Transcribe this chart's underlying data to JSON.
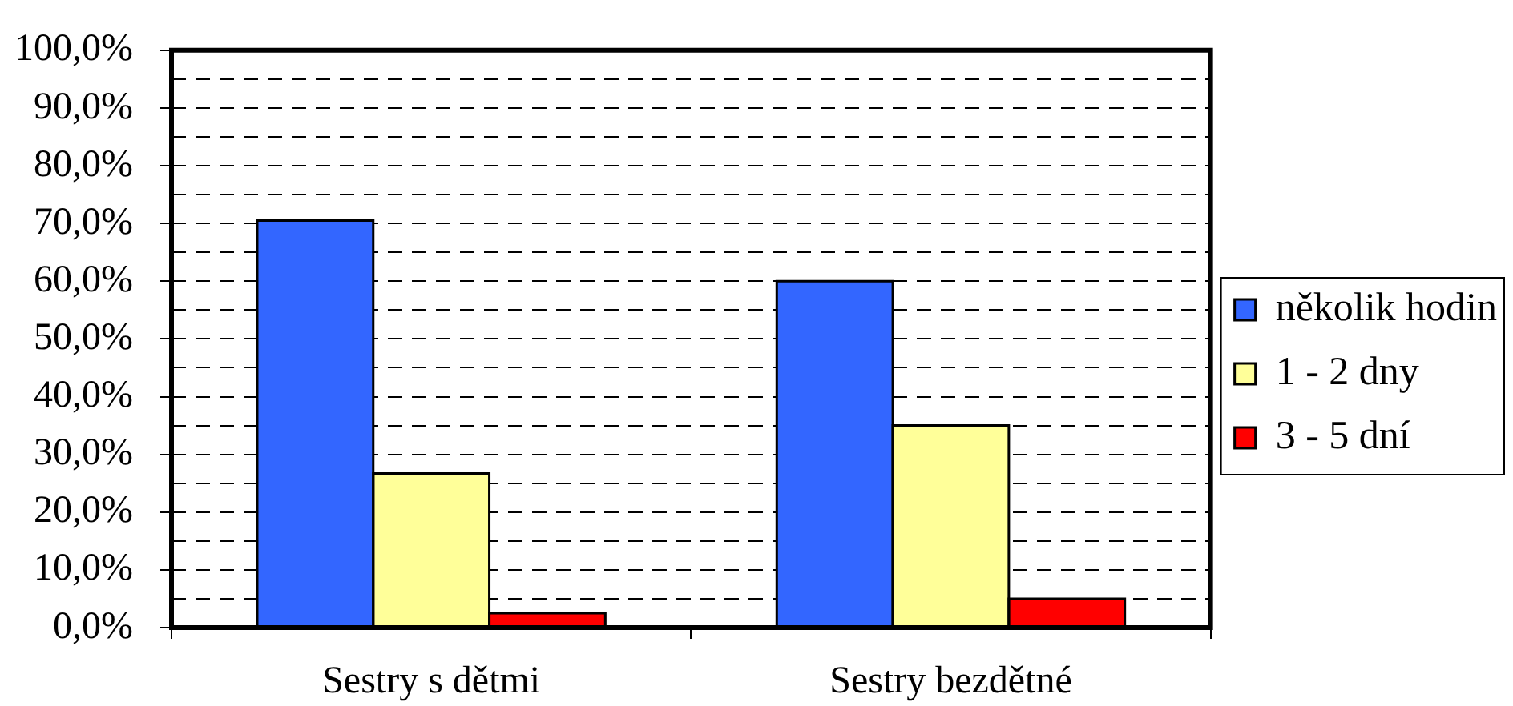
{
  "chart_data": {
    "type": "bar",
    "categories": [
      "Sestry s dětmi",
      "Sestry bezdětné"
    ],
    "series": [
      {
        "name": "několik hodin",
        "color": "#3366ff",
        "values": [
          70.5,
          60.0
        ]
      },
      {
        "name": "1 - 2 dny",
        "color": "#ffff99",
        "values": [
          26.7,
          35.0
        ]
      },
      {
        "name": "3 - 5 dní",
        "color": "#ff0000",
        "values": [
          2.5,
          5.0
        ]
      }
    ],
    "ylim": [
      0,
      100
    ],
    "yticks": [
      {
        "value": 0,
        "label": "0,0%"
      },
      {
        "value": 5,
        "label": null
      },
      {
        "value": 10,
        "label": "10,0%"
      },
      {
        "value": 15,
        "label": null
      },
      {
        "value": 20,
        "label": "20,0%"
      },
      {
        "value": 25,
        "label": null
      },
      {
        "value": 30,
        "label": "30,0%"
      },
      {
        "value": 35,
        "label": null
      },
      {
        "value": 40,
        "label": "40,0%"
      },
      {
        "value": 45,
        "label": null
      },
      {
        "value": 50,
        "label": "50,0%"
      },
      {
        "value": 55,
        "label": null
      },
      {
        "value": 60,
        "label": "60,0%"
      },
      {
        "value": 65,
        "label": null
      },
      {
        "value": 70,
        "label": "70,0%"
      },
      {
        "value": 75,
        "label": null
      },
      {
        "value": 80,
        "label": "80,0%"
      },
      {
        "value": 85,
        "label": null
      },
      {
        "value": 90,
        "label": "90,0%"
      },
      {
        "value": 95,
        "label": null
      },
      {
        "value": 100,
        "label": "100,0%"
      }
    ],
    "grid": "y",
    "legend": "right"
  }
}
